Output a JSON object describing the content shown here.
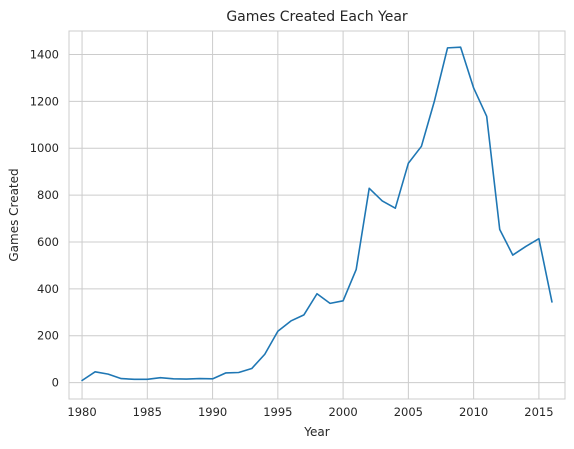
{
  "chart_data": {
    "type": "line",
    "title": "Games Created Each Year",
    "xlabel": "Year",
    "ylabel": "Games Created",
    "xlim": [
      1979,
      2017
    ],
    "ylim": [
      -70,
      1500
    ],
    "xticks": [
      1980,
      1985,
      1990,
      1995,
      2000,
      2005,
      2010,
      2015
    ],
    "yticks": [
      0,
      200,
      400,
      600,
      800,
      1000,
      1200,
      1400
    ],
    "grid": true,
    "legend": "none",
    "line_color": "#1f77b4",
    "grid_color": "#cccccc",
    "spine_color": "#cccccc",
    "series": [
      {
        "x": [
          1980,
          1981,
          1982,
          1983,
          1984,
          1985,
          1986,
          1987,
          1988,
          1989,
          1990,
          1991,
          1992,
          1993,
          1994,
          1995,
          1996,
          1997,
          1998,
          1999,
          2000,
          2001,
          2002,
          2003,
          2004,
          2005,
          2006,
          2007,
          2008,
          2009,
          2010,
          2011,
          2012,
          2013,
          2014,
          2015,
          2016
        ],
        "y": [
          9,
          46,
          36,
          17,
          14,
          14,
          21,
          16,
          15,
          17,
          16,
          41,
          43,
          60,
          121,
          219,
          263,
          289,
          379,
          338,
          349,
          482,
          829,
          775,
          744,
          936,
          1008,
          1202,
          1428,
          1431,
          1257,
          1136,
          653,
          544,
          581,
          614,
          344
        ]
      }
    ]
  }
}
